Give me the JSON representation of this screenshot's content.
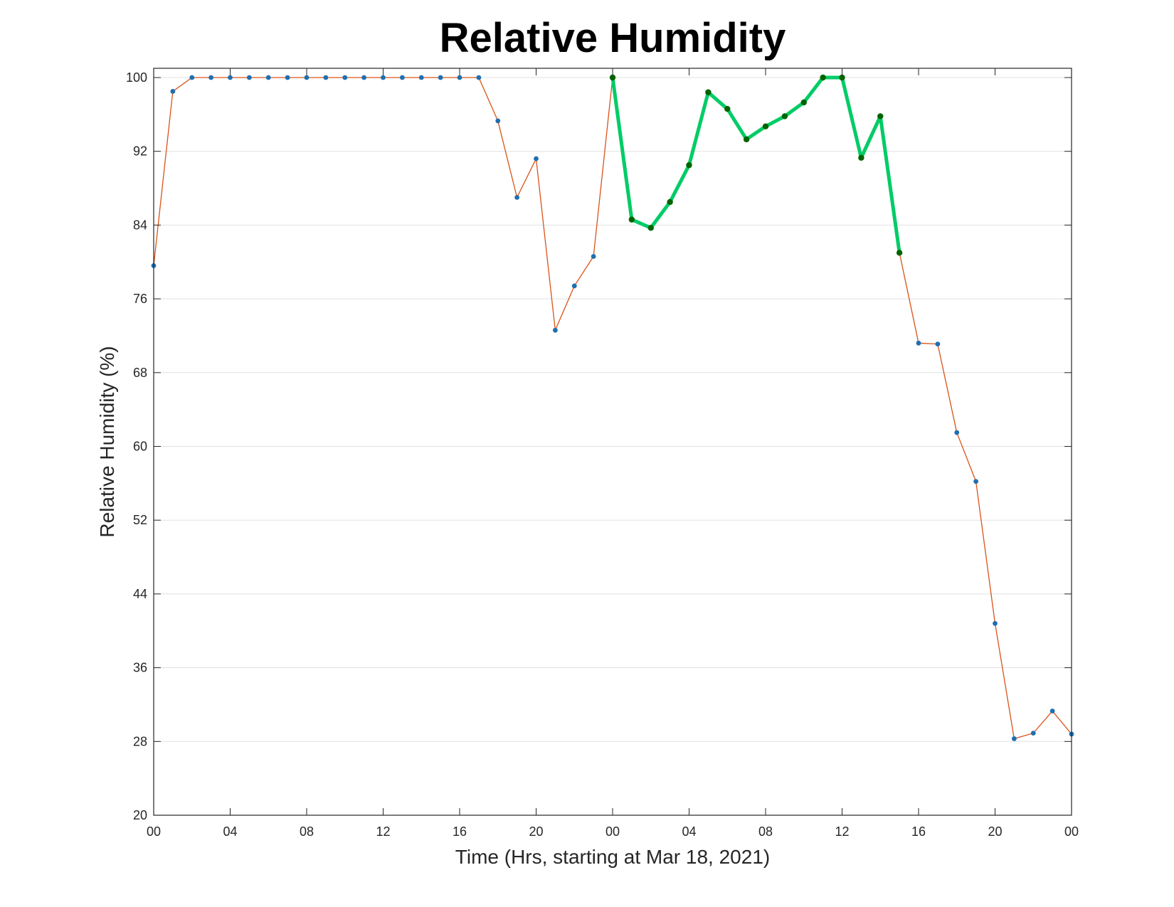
{
  "chart_data": {
    "type": "line",
    "title": "Relative Humidity",
    "xlabel": "Time (Hrs, starting at Mar 18, 2021)",
    "ylabel": "Relative Humidity (%)",
    "xlim": [
      0,
      48
    ],
    "ylim": [
      20,
      100
    ],
    "x_unit": "hours",
    "x_ticks": [
      0,
      4,
      8,
      12,
      16,
      20,
      24,
      28,
      32,
      36,
      40,
      44,
      48
    ],
    "x_tick_labels": [
      "00",
      "04",
      "08",
      "12",
      "16",
      "20",
      "00",
      "04",
      "08",
      "12",
      "16",
      "20",
      "00"
    ],
    "y_ticks": [
      20,
      28,
      36,
      44,
      52,
      60,
      68,
      76,
      84,
      92,
      100
    ],
    "y_tick_labels": [
      "20",
      "28",
      "36",
      "44",
      "52",
      "60",
      "68",
      "76",
      "84",
      "92",
      "100"
    ],
    "grid": "horizontal",
    "series": [
      {
        "color": "#d95319",
        "marker_color": "#1f6fb0",
        "line": "thin",
        "x": [
          0,
          1,
          2,
          3,
          4,
          5,
          6,
          7,
          8,
          9,
          10,
          11,
          12,
          13,
          14,
          15,
          16,
          17,
          18,
          19,
          20,
          21,
          22,
          23,
          24,
          25,
          26,
          27,
          28,
          29,
          30,
          31,
          32,
          33,
          34,
          35,
          36,
          37,
          38,
          39,
          40,
          41,
          42,
          43,
          44,
          45,
          46,
          47,
          48
        ],
        "y": [
          79.6,
          98.5,
          100,
          100,
          100,
          100,
          100,
          100,
          100,
          100,
          100,
          100,
          100,
          100,
          100,
          100,
          100,
          100,
          95.3,
          87.0,
          91.2,
          72.6,
          77.4,
          80.6,
          100,
          84.6,
          83.7,
          86.5,
          90.5,
          98.4,
          96.6,
          93.3,
          94.7,
          95.8,
          97.3,
          100,
          100,
          91.3,
          95.8,
          81.0,
          71.2,
          71.1,
          61.5,
          56.2,
          40.8,
          28.3,
          28.9,
          31.3,
          28.8
        ]
      },
      {
        "color": "#00cc66",
        "marker_color": "#006400",
        "line": "thick",
        "x": [
          24,
          25,
          26,
          27,
          28,
          29,
          30,
          31,
          32,
          33,
          34,
          35,
          36,
          37,
          38,
          39
        ],
        "y": [
          100,
          84.6,
          83.7,
          86.5,
          90.5,
          98.4,
          96.6,
          93.3,
          94.7,
          95.8,
          97.3,
          100,
          100,
          91.3,
          95.8,
          81.0
        ]
      }
    ]
  }
}
